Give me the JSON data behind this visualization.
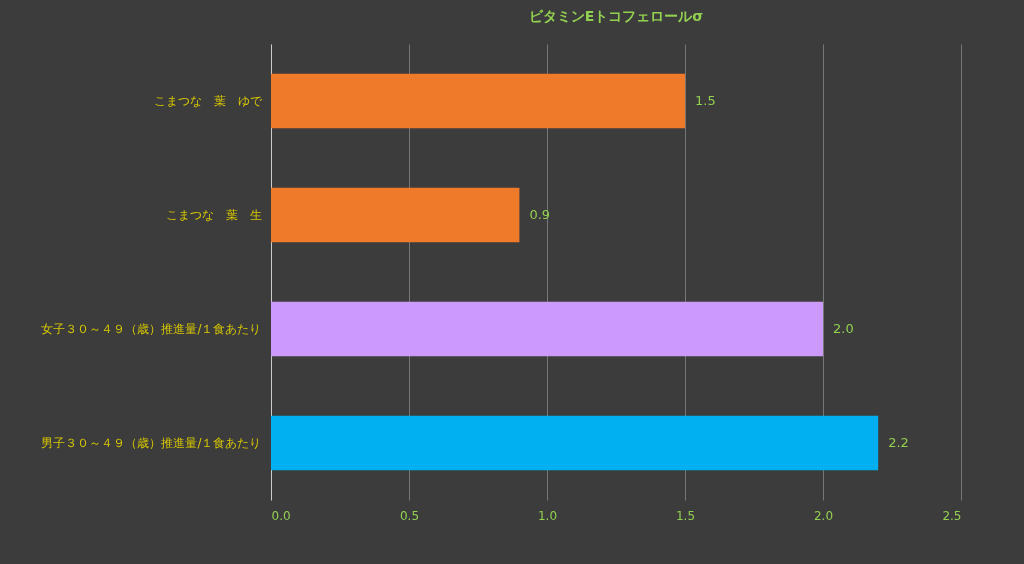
{
  "chart_data": {
    "type": "bar",
    "orientation": "horizontal",
    "title": "ビタミンEトコフェロールσ",
    "categories": [
      "こまつな　葉　ゆで",
      "こまつな　葉　生",
      "女子３０～４９（歳）推進量/１食あたり",
      "男子３０～４９（歳）推進量/１食あたり"
    ],
    "values": [
      1.5,
      0.9,
      2.0,
      2.2
    ],
    "colors": [
      "#ee7a2a",
      "#ee7a2a",
      "#cc99ff",
      "#00b0f0"
    ],
    "xlim": [
      0,
      2.5
    ],
    "xticks": [
      {
        "value": 0,
        "label": "0.0"
      },
      0.5,
      {
        "value": 1,
        "label": "1.0"
      },
      1.5,
      {
        "value": 2,
        "label": "2.0"
      },
      2.5
    ],
    "value_labels": [
      "1.5",
      "0.9",
      "2.0",
      "2.2"
    ],
    "grid": "x"
  }
}
